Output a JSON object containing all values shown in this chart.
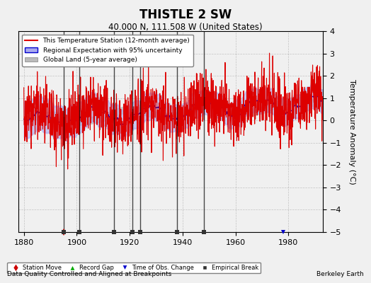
{
  "title": "THISTLE 2 SW",
  "subtitle": "40.000 N, 111.508 W (United States)",
  "xlabel_start": 1880,
  "xlabel_end": 1990,
  "ylabel": "Temperature Anomaly (°C)",
  "ylim": [
    -5,
    4
  ],
  "yticks": [
    -5,
    -4,
    -3,
    -2,
    -1,
    0,
    1,
    2,
    3,
    4
  ],
  "xticks": [
    1880,
    1900,
    1920,
    1940,
    1960,
    1980
  ],
  "footer_left": "Data Quality Controlled and Aligned at Breakpoints",
  "footer_right": "Berkeley Earth",
  "legend_entries": [
    "This Temperature Station (12-month average)",
    "Regional Expectation with 95% uncertainty",
    "Global Land (5-year average)"
  ],
  "station_move_color": "#cc0000",
  "record_gap_color": "#00aa00",
  "time_obs_color": "#0000cc",
  "empirical_break_color": "#333333",
  "red_line_color": "#dd0000",
  "blue_line_color": "#0000cc",
  "blue_fill_color": "#aaaaee",
  "gray_fill_color": "#bbbbbb",
  "bg_color": "#f0f0f0",
  "plot_bg_color": "#f0f0f0",
  "seed": 42,
  "station_moves": [
    1895
  ],
  "record_gaps": [
    1901,
    1914,
    1921,
    1924
  ],
  "time_obs_changes": [
    1948,
    1978
  ],
  "empirical_breaks": [
    1895,
    1901,
    1914,
    1921,
    1924,
    1938,
    1948
  ]
}
